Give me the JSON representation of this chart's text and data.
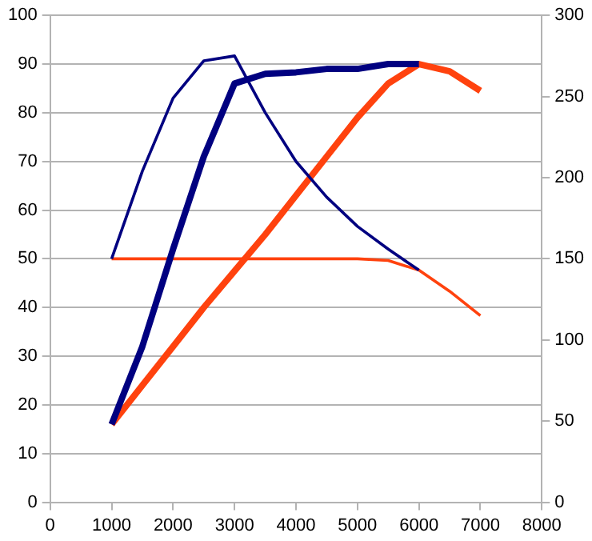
{
  "chart_data": {
    "type": "line",
    "xlim": [
      0,
      8000
    ],
    "xticks": [
      0,
      1000,
      2000,
      3000,
      4000,
      5000,
      6000,
      7000,
      8000
    ],
    "ylim": [
      0,
      100
    ],
    "yticks": [
      0,
      10,
      20,
      30,
      40,
      50,
      60,
      70,
      80,
      90,
      100
    ],
    "y2lim": [
      0,
      300
    ],
    "y2ticks": [
      0,
      50,
      100,
      150,
      200,
      250,
      300
    ],
    "grid": "y",
    "legend": false,
    "marker": "none",
    "series": [
      {
        "color": "#000080",
        "x": [
          1000,
          1500,
          2000,
          2500,
          3000,
          3500,
          4000,
          4500,
          5000,
          5500,
          6000
        ],
        "values": [
          16,
          32,
          52,
          71,
          86,
          88,
          88.3,
          89,
          89,
          90,
          90
        ]
      },
      {
        "color": "#000080",
        "axis": "y2",
        "x": [
          1000,
          1500,
          2000,
          2500,
          3000,
          3500,
          4000,
          4500,
          5000,
          5500,
          6000
        ],
        "values": [
          150,
          204,
          249,
          272,
          275,
          240,
          210,
          188,
          170,
          156,
          143
        ]
      },
      {
        "color": "#ff420e",
        "x": [
          1000,
          1500,
          2000,
          2500,
          3000,
          3500,
          4000,
          4500,
          5000,
          5500,
          6000,
          6500,
          7000
        ],
        "values": [
          16,
          24,
          32,
          40,
          47.5,
          55,
          63,
          71,
          79,
          86,
          90,
          88.5,
          84.5
        ]
      },
      {
        "color": "#ff420e",
        "axis": "y2",
        "x": [
          1000,
          1500,
          2000,
          2500,
          3000,
          3500,
          4000,
          4500,
          5000,
          5500,
          6000,
          6500,
          7000
        ],
        "values": [
          150,
          150,
          150,
          150,
          150,
          150,
          150,
          150,
          150,
          149,
          143,
          130,
          115
        ]
      }
    ]
  }
}
